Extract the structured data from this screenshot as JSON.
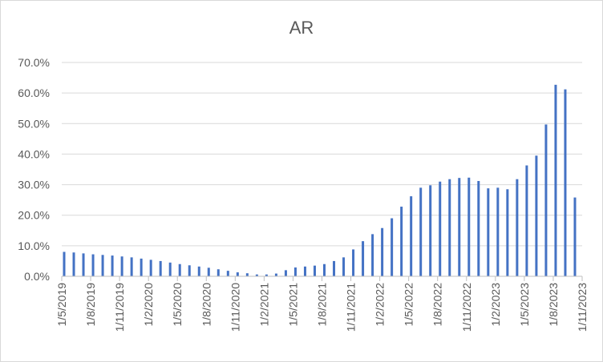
{
  "chart_data": {
    "type": "bar",
    "title": "AR",
    "xlabel": "",
    "ylabel": "",
    "ylim": [
      0,
      70
    ],
    "y_ticks": [
      "0.0%",
      "10.0%",
      "20.0%",
      "30.0%",
      "40.0%",
      "50.0%",
      "60.0%",
      "70.0%"
    ],
    "x_tick_labels": [
      "1/5/2019",
      "1/8/2019",
      "1/11/2019",
      "1/2/2020",
      "1/5/2020",
      "1/8/2020",
      "1/11/2020",
      "1/2/2021",
      "1/5/2021",
      "1/8/2021",
      "1/11/2021",
      "1/2/2022",
      "1/5/2022",
      "1/8/2022",
      "1/11/2022",
      "1/2/2023",
      "1/5/2023",
      "1/8/2023",
      "1/11/2023"
    ],
    "x_range": [
      "2019-05",
      "2023-11"
    ],
    "grid": "horizontal",
    "bar_color": "#4472c4",
    "series": [
      {
        "x": [
          "2019-05",
          "2019-06",
          "2019-07",
          "2019-08",
          "2019-09",
          "2019-10",
          "2019-11",
          "2019-12",
          "2020-01",
          "2020-02",
          "2020-03",
          "2020-04",
          "2020-05",
          "2020-06",
          "2020-07",
          "2020-08",
          "2020-09",
          "2020-10",
          "2020-11",
          "2020-12",
          "2021-01",
          "2021-02",
          "2021-03",
          "2021-04",
          "2021-05",
          "2021-06",
          "2021-07",
          "2021-08",
          "2021-09",
          "2021-10",
          "2021-11",
          "2021-12",
          "2022-01",
          "2022-02",
          "2022-03",
          "2022-04",
          "2022-05",
          "2022-06",
          "2022-07",
          "2022-08",
          "2022-09",
          "2022-10",
          "2022-11",
          "2022-12",
          "2023-01",
          "2023-02",
          "2023-03",
          "2023-04",
          "2023-05",
          "2023-06",
          "2023-07",
          "2023-08",
          "2023-09",
          "2023-10"
        ],
        "values": [
          8.0,
          7.8,
          7.5,
          7.2,
          7.0,
          6.8,
          6.5,
          6.2,
          5.8,
          5.4,
          5.0,
          4.5,
          4.0,
          3.6,
          3.2,
          2.8,
          2.3,
          1.8,
          1.3,
          1.0,
          0.6,
          0.6,
          0.9,
          2.0,
          2.9,
          3.2,
          3.5,
          4.0,
          5.0,
          6.2,
          8.8,
          11.5,
          13.8,
          15.8,
          19.0,
          22.8,
          26.2,
          29.0,
          29.8,
          31.0,
          31.8,
          32.2,
          32.3,
          31.2,
          28.8,
          29.0,
          28.5,
          31.8,
          36.3,
          39.5,
          49.7,
          62.7,
          61.2,
          25.8
        ]
      }
    ]
  }
}
